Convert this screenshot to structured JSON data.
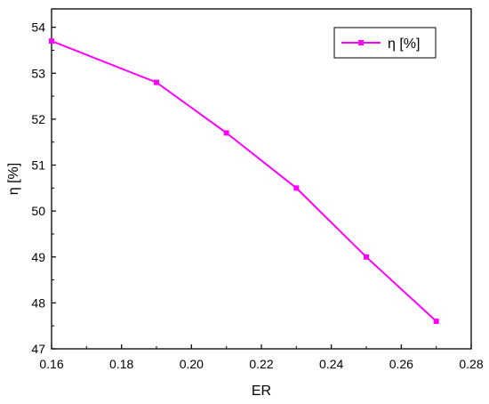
{
  "chart_data": {
    "type": "line",
    "xlabel": "ER",
    "ylabel": "η [%]",
    "xlim": [
      0.16,
      0.28
    ],
    "ylim": [
      47,
      54.4
    ],
    "x_ticks": [
      "0.16",
      "0.18",
      "0.20",
      "0.22",
      "0.24",
      "0.26",
      "0.28"
    ],
    "y_ticks": [
      "47",
      "48",
      "49",
      "50",
      "51",
      "52",
      "53",
      "54"
    ],
    "grid": false,
    "legend_position": "top-right",
    "series": [
      {
        "name": "η [%]",
        "color": "#ff00ff",
        "marker": "square",
        "x": [
          0.16,
          0.19,
          0.21,
          0.23,
          0.25,
          0.27
        ],
        "y": [
          53.7,
          52.8,
          51.7,
          50.5,
          49.0,
          47.6
        ]
      }
    ]
  }
}
